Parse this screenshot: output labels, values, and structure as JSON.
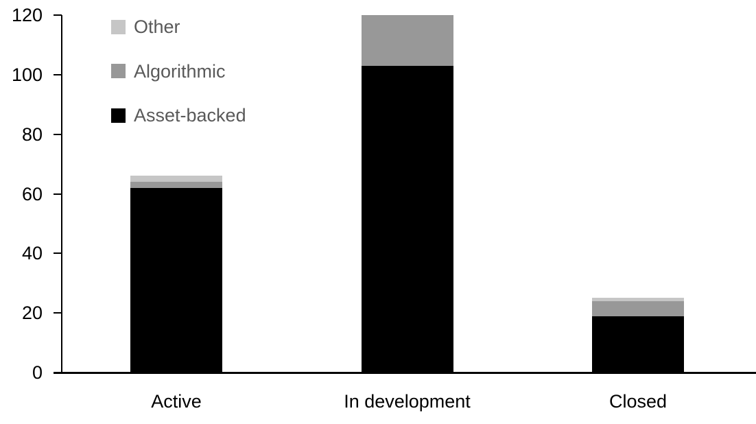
{
  "chart_data": {
    "type": "bar",
    "stacked": true,
    "title": "",
    "xlabel": "",
    "ylabel": "",
    "categories": [
      "Active",
      "In development",
      "Closed"
    ],
    "series": [
      {
        "name": "Asset-backed",
        "color": "#000000",
        "values": [
          62,
          103,
          19
        ]
      },
      {
        "name": "Algorithmic",
        "color": "#989898",
        "values": [
          2,
          17,
          5
        ]
      },
      {
        "name": "Other",
        "color": "#c6c6c6",
        "values": [
          2,
          0,
          1
        ]
      }
    ],
    "stack_totals": [
      66,
      120,
      25
    ],
    "ylim": [
      0,
      120
    ],
    "yticks": [
      0,
      20,
      40,
      60,
      80,
      100,
      120
    ],
    "grid": false,
    "legend_position": "top-left",
    "legend_order": [
      "Other",
      "Algorithmic",
      "Asset-backed"
    ]
  },
  "colors": {
    "background": "#ffffff",
    "axis": "#000000",
    "tick_label_text": "#000000",
    "category_label_text": "#000000",
    "legend_text": "#595959",
    "asset_backed": "#000000",
    "algorithmic": "#989898",
    "other": "#c6c6c6"
  }
}
